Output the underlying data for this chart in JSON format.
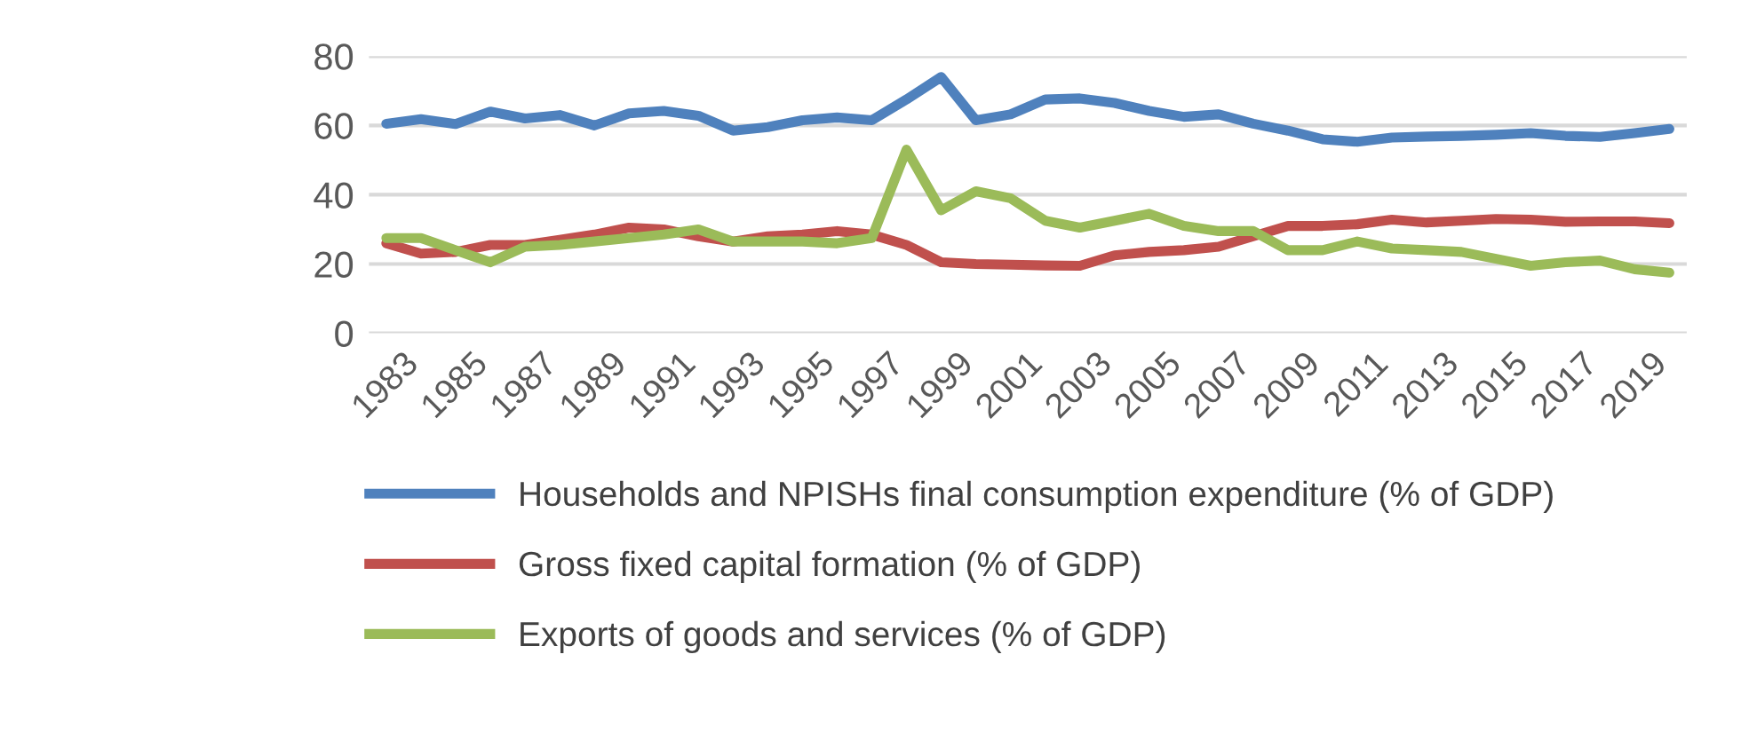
{
  "chart_data": {
    "type": "line",
    "categories": [
      "1983",
      null,
      "1985",
      null,
      "1987",
      null,
      "1989",
      null,
      "1991",
      null,
      "1993",
      null,
      "1995",
      null,
      "1997",
      null,
      "1999",
      null,
      "2001",
      null,
      "2003",
      null,
      "2005",
      null,
      "2007",
      null,
      "2009",
      null,
      "2011",
      null,
      "2013",
      null,
      "2015",
      null,
      "2017",
      null,
      "2019",
      null
    ],
    "series": [
      {
        "name": "Households and NPISHs final consumption expenditure (% of GDP)",
        "color": "#4f81bd",
        "values": [
          60.5,
          61.8,
          60.4,
          64,
          62,
          63,
          60,
          63.5,
          64.2,
          62.8,
          58.5,
          59.5,
          61.5,
          62.3,
          61.5,
          67.5,
          74,
          61.5,
          63.2,
          67.5,
          67.8,
          66.5,
          64.2,
          62.5,
          63.2,
          60.5,
          58.5,
          56,
          55.3,
          56.5,
          56.8,
          57,
          57.3,
          57.8,
          57,
          56.7,
          57.8,
          59
        ]
      },
      {
        "name": "Gross fixed capital formation (% of GDP)",
        "color": "#c0504d",
        "values": [
          26,
          23,
          23.5,
          25.5,
          25.5,
          27,
          28.5,
          30.5,
          30,
          28,
          26.5,
          28,
          28.5,
          29.5,
          28.5,
          25.5,
          20.5,
          20,
          19.8,
          19.6,
          19.5,
          22.5,
          23.5,
          24,
          25,
          28,
          31,
          31,
          31.5,
          32.8,
          32,
          32.5,
          33,
          32.8,
          32.2,
          32.3,
          32.3,
          31.8
        ]
      },
      {
        "name": "Exports of goods and services (% of GDP)",
        "color": "#9bbb59",
        "values": [
          27.5,
          27.5,
          24,
          20.5,
          25,
          25.5,
          26.5,
          27.5,
          28.5,
          30,
          26.5,
          26.5,
          26.5,
          26,
          27.5,
          53,
          35.5,
          41,
          39,
          32.5,
          30.5,
          32.5,
          34.5,
          31,
          29.5,
          29.5,
          24,
          24,
          26.5,
          24.5,
          24,
          23.5,
          21.5,
          19.5,
          20.5,
          21,
          18.5,
          17.5
        ]
      }
    ],
    "ylim": [
      0,
      80
    ],
    "yticks": [
      0,
      20,
      40,
      60,
      80
    ],
    "grid": "y",
    "legend": "bottom",
    "marker": "none",
    "line_style": "solid"
  }
}
